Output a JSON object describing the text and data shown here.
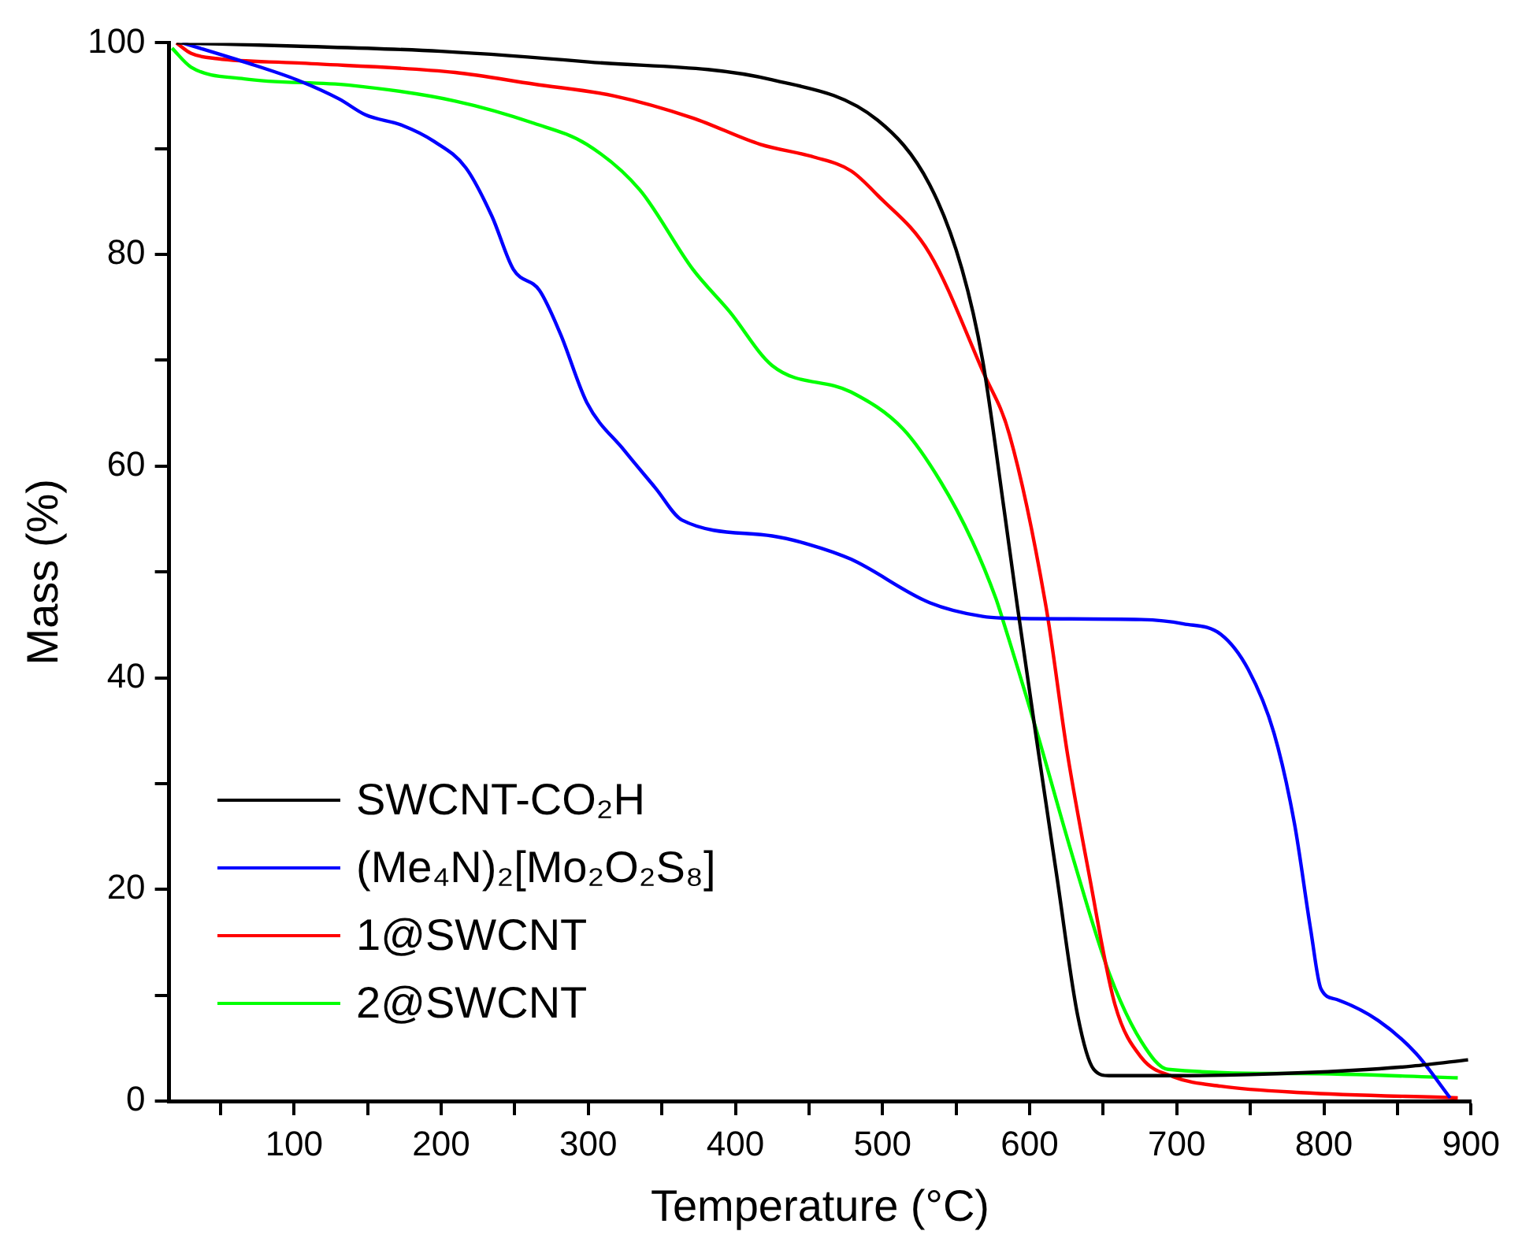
{
  "chart_data": {
    "type": "line",
    "xlabel": "Temperature (°C)",
    "ylabel": "Mass (%)",
    "xlim": [
      15,
      900
    ],
    "ylim": [
      0,
      100
    ],
    "xticks": [
      {
        "value": 50,
        "label": null
      },
      100,
      {
        "value": 150,
        "label": null
      },
      200,
      {
        "value": 250,
        "label": null
      },
      300,
      {
        "value": 350,
        "label": null
      },
      400,
      {
        "value": 450,
        "label": null
      },
      500,
      {
        "value": 550,
        "label": null
      },
      600,
      {
        "value": 650,
        "label": null
      },
      700,
      {
        "value": 750,
        "label": null
      },
      800,
      {
        "value": 850,
        "label": null
      },
      900
    ],
    "yticks": [
      0,
      {
        "value": 10,
        "label": null
      },
      20,
      {
        "value": 30,
        "label": null
      },
      40,
      {
        "value": 50,
        "label": null
      },
      60,
      {
        "value": 70,
        "label": null
      },
      80,
      {
        "value": 90,
        "label": null
      },
      100
    ],
    "grid": false,
    "legend": "bottom left",
    "marker": "none",
    "line_style": "solid",
    "series": [
      {
        "name": "SWCNT-CO₂H",
        "color": "#000000",
        "x": [
          20,
          100,
          200,
          300,
          425,
          496.6,
          532,
          554,
          568,
          582.6,
          591.6,
          604,
          618.5,
          632.6,
          643.5,
          654,
          700,
          750,
          819.5,
          860,
          898
        ],
        "values": [
          100,
          99.7,
          99.2,
          98.2,
          96.5,
          92.7,
          86.6,
          78.6,
          70,
          55.9,
          46.8,
          34.8,
          21.2,
          8.1,
          3.0,
          2.4,
          2.4,
          2.5,
          2.9,
          3.3,
          3.9
        ]
      },
      {
        "name": "(Me₄N)₂[Mo₂O₂S₈]",
        "color": "#0000ff",
        "x": [
          24,
          66,
          102,
          130.6,
          148.5,
          173.6,
          195,
          216.7,
          234.5,
          249,
          266.8,
          281,
          299,
          324.3,
          345.8,
          363.7,
          425,
          450,
          478.6,
          532,
          568,
          593.4,
          676,
          704.6,
          730,
          748.5,
          766,
          780,
          791,
          798,
          808.7,
          837,
          862.6,
          885.8
        ],
        "values": [
          100,
          98.2,
          96.5,
          94.7,
          93.2,
          92.2,
          90.7,
          88.2,
          83.6,
          78.6,
          76.6,
          72.5,
          66,
          61.5,
          57.9,
          54.9,
          53.4,
          52.6,
          51.2,
          47.1,
          45.8,
          45.6,
          45.5,
          45.1,
          44.1,
          40.8,
          34.8,
          26.2,
          16.2,
          10.6,
          9.6,
          7.6,
          4.5,
          0.3
        ]
      },
      {
        "name": "1@SWCNT",
        "color": "#ff0000",
        "x": [
          20,
          30,
          48,
          102,
          209.5,
          263,
          317,
          371,
          417,
          453.5,
          478.6,
          496.6,
          532,
          568,
          586.2,
          611,
          625.7,
          640,
          658,
          676,
          697.6,
          730,
          784,
          891
        ],
        "values": [
          100,
          99,
          98.5,
          98.1,
          97.2,
          96.1,
          95,
          92.9,
          90.4,
          89.2,
          87.9,
          85.6,
          80.1,
          69,
          63,
          46.8,
          32.8,
          21.7,
          9.1,
          4.1,
          2.3,
          1.4,
          0.8,
          0.3
        ]
      },
      {
        "name": "2@SWCNT",
        "color": "#00ff00",
        "x": [
          17,
          30,
          66,
          137.6,
          209.5,
          263,
          299,
          335,
          371,
          396,
          425,
          478.6,
          514,
          539.6,
          561,
          577,
          581,
          604,
          629,
          654,
          676,
          694,
          784,
          891
        ],
        "values": [
          99.5,
          97.7,
          96.6,
          96,
          94.5,
          92.4,
          90.4,
          86.1,
          78.6,
          74.6,
          69.5,
          67,
          63.5,
          58.5,
          52.9,
          47.5,
          45.8,
          35.3,
          23.2,
          12.1,
          5.6,
          3.0,
          2.6,
          2.2
        ]
      }
    ]
  }
}
